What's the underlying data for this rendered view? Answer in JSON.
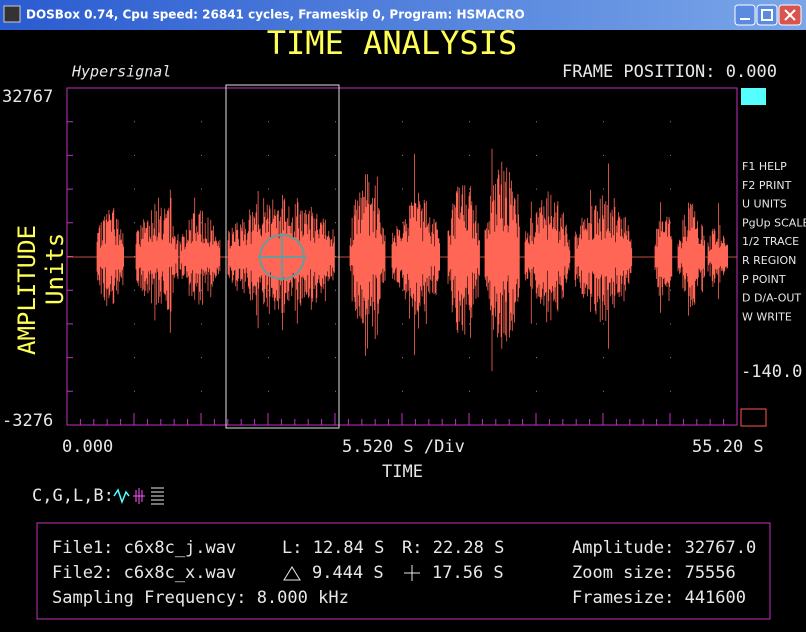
{
  "window": {
    "title": "DOSBox 0.74, Cpu speed:     26841 cycles, Frameskip  0, Program:  HSMACRO"
  },
  "header": {
    "title": "TIME ANALYSIS",
    "brand": "Hypersignal",
    "frame_position": "FRAME POSITION: 0.000"
  },
  "plot": {
    "y_top": "32767",
    "y_bottom": "-3276",
    "x_start": "0.000",
    "x_div": "5.520 S /Div",
    "x_end": "55.20 S",
    "x_label": "TIME",
    "y_label": "AMPLITUDE",
    "y_units": "Units",
    "level": "-140.0"
  },
  "menu": [
    "F1 HELP",
    "F2 PRINT",
    "U UNITS",
    "PgUp SCALE",
    "1/2 TRACE",
    "R REGION",
    "P POINT",
    "D D/A-OUT",
    "W WRITE"
  ],
  "legend": "C,G,L,B:",
  "info": {
    "file1": "File1: c6x8c_j.wav",
    "left": "L: 12.84 S",
    "right": "R: 22.28 S",
    "amplitude": "Amplitude: 32767.0",
    "file2": "File2: c6x8c_x.wav",
    "delta": "9.444 S",
    "plus": "17.56 S",
    "zoom": "Zoom size: 75556",
    "sampling": "Sampling Frequency: 8.000 kHz",
    "framesize": "Framesize: 441600"
  }
}
